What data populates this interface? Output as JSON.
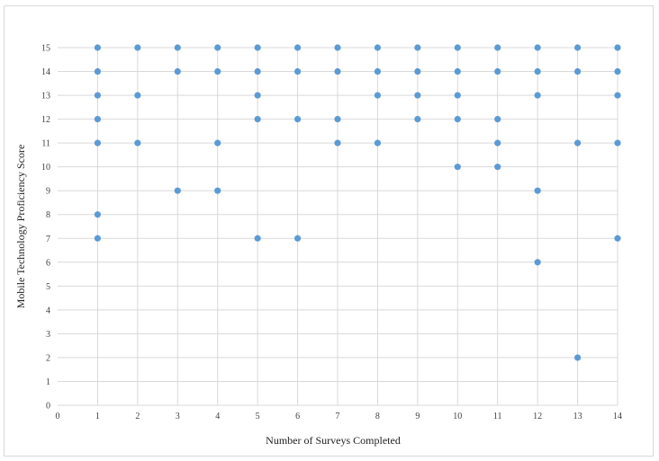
{
  "chart_data": {
    "type": "scatter",
    "title": "",
    "xlabel": "Number of Surveys Completed",
    "ylabel": "Mobile Technology Proficiency  Score",
    "xlim": [
      0,
      14
    ],
    "ylim": [
      0,
      15
    ],
    "xticks": [
      0,
      1,
      2,
      3,
      4,
      5,
      6,
      7,
      8,
      9,
      10,
      11,
      12,
      13,
      14
    ],
    "yticks": [
      0,
      1,
      2,
      3,
      4,
      5,
      6,
      7,
      8,
      9,
      10,
      11,
      12,
      13,
      14,
      15
    ],
    "grid": {
      "horizontal": true,
      "vertical": true
    },
    "legend": "none",
    "marker_color": "#5b9bd5",
    "gridline_color": "#d9d9d9",
    "series": [
      {
        "points": [
          [
            1,
            15
          ],
          [
            1,
            14
          ],
          [
            1,
            13
          ],
          [
            1,
            12
          ],
          [
            1,
            11
          ],
          [
            1,
            8
          ],
          [
            1,
            7
          ],
          [
            2,
            15
          ],
          [
            2,
            13
          ],
          [
            2,
            11
          ],
          [
            3,
            15
          ],
          [
            3,
            14
          ],
          [
            3,
            9
          ],
          [
            4,
            15
          ],
          [
            4,
            14
          ],
          [
            4,
            11
          ],
          [
            4,
            9
          ],
          [
            5,
            15
          ],
          [
            5,
            14
          ],
          [
            5,
            13
          ],
          [
            5,
            12
          ],
          [
            5,
            7
          ],
          [
            6,
            15
          ],
          [
            6,
            14
          ],
          [
            6,
            12
          ],
          [
            6,
            7
          ],
          [
            7,
            15
          ],
          [
            7,
            14
          ],
          [
            7,
            12
          ],
          [
            7,
            11
          ],
          [
            8,
            15
          ],
          [
            8,
            14
          ],
          [
            8,
            13
          ],
          [
            8,
            11
          ],
          [
            9,
            15
          ],
          [
            9,
            14
          ],
          [
            9,
            13
          ],
          [
            9,
            12
          ],
          [
            10,
            15
          ],
          [
            10,
            14
          ],
          [
            10,
            13
          ],
          [
            10,
            12
          ],
          [
            10,
            10
          ],
          [
            11,
            15
          ],
          [
            11,
            14
          ],
          [
            11,
            12
          ],
          [
            11,
            11
          ],
          [
            11,
            10
          ],
          [
            12,
            15
          ],
          [
            12,
            14
          ],
          [
            12,
            13
          ],
          [
            12,
            9
          ],
          [
            12,
            6
          ],
          [
            13,
            15
          ],
          [
            13,
            14
          ],
          [
            13,
            11
          ],
          [
            13,
            2
          ],
          [
            14,
            15
          ],
          [
            14,
            14
          ],
          [
            14,
            13
          ],
          [
            14,
            11
          ],
          [
            14,
            7
          ]
        ]
      }
    ]
  }
}
